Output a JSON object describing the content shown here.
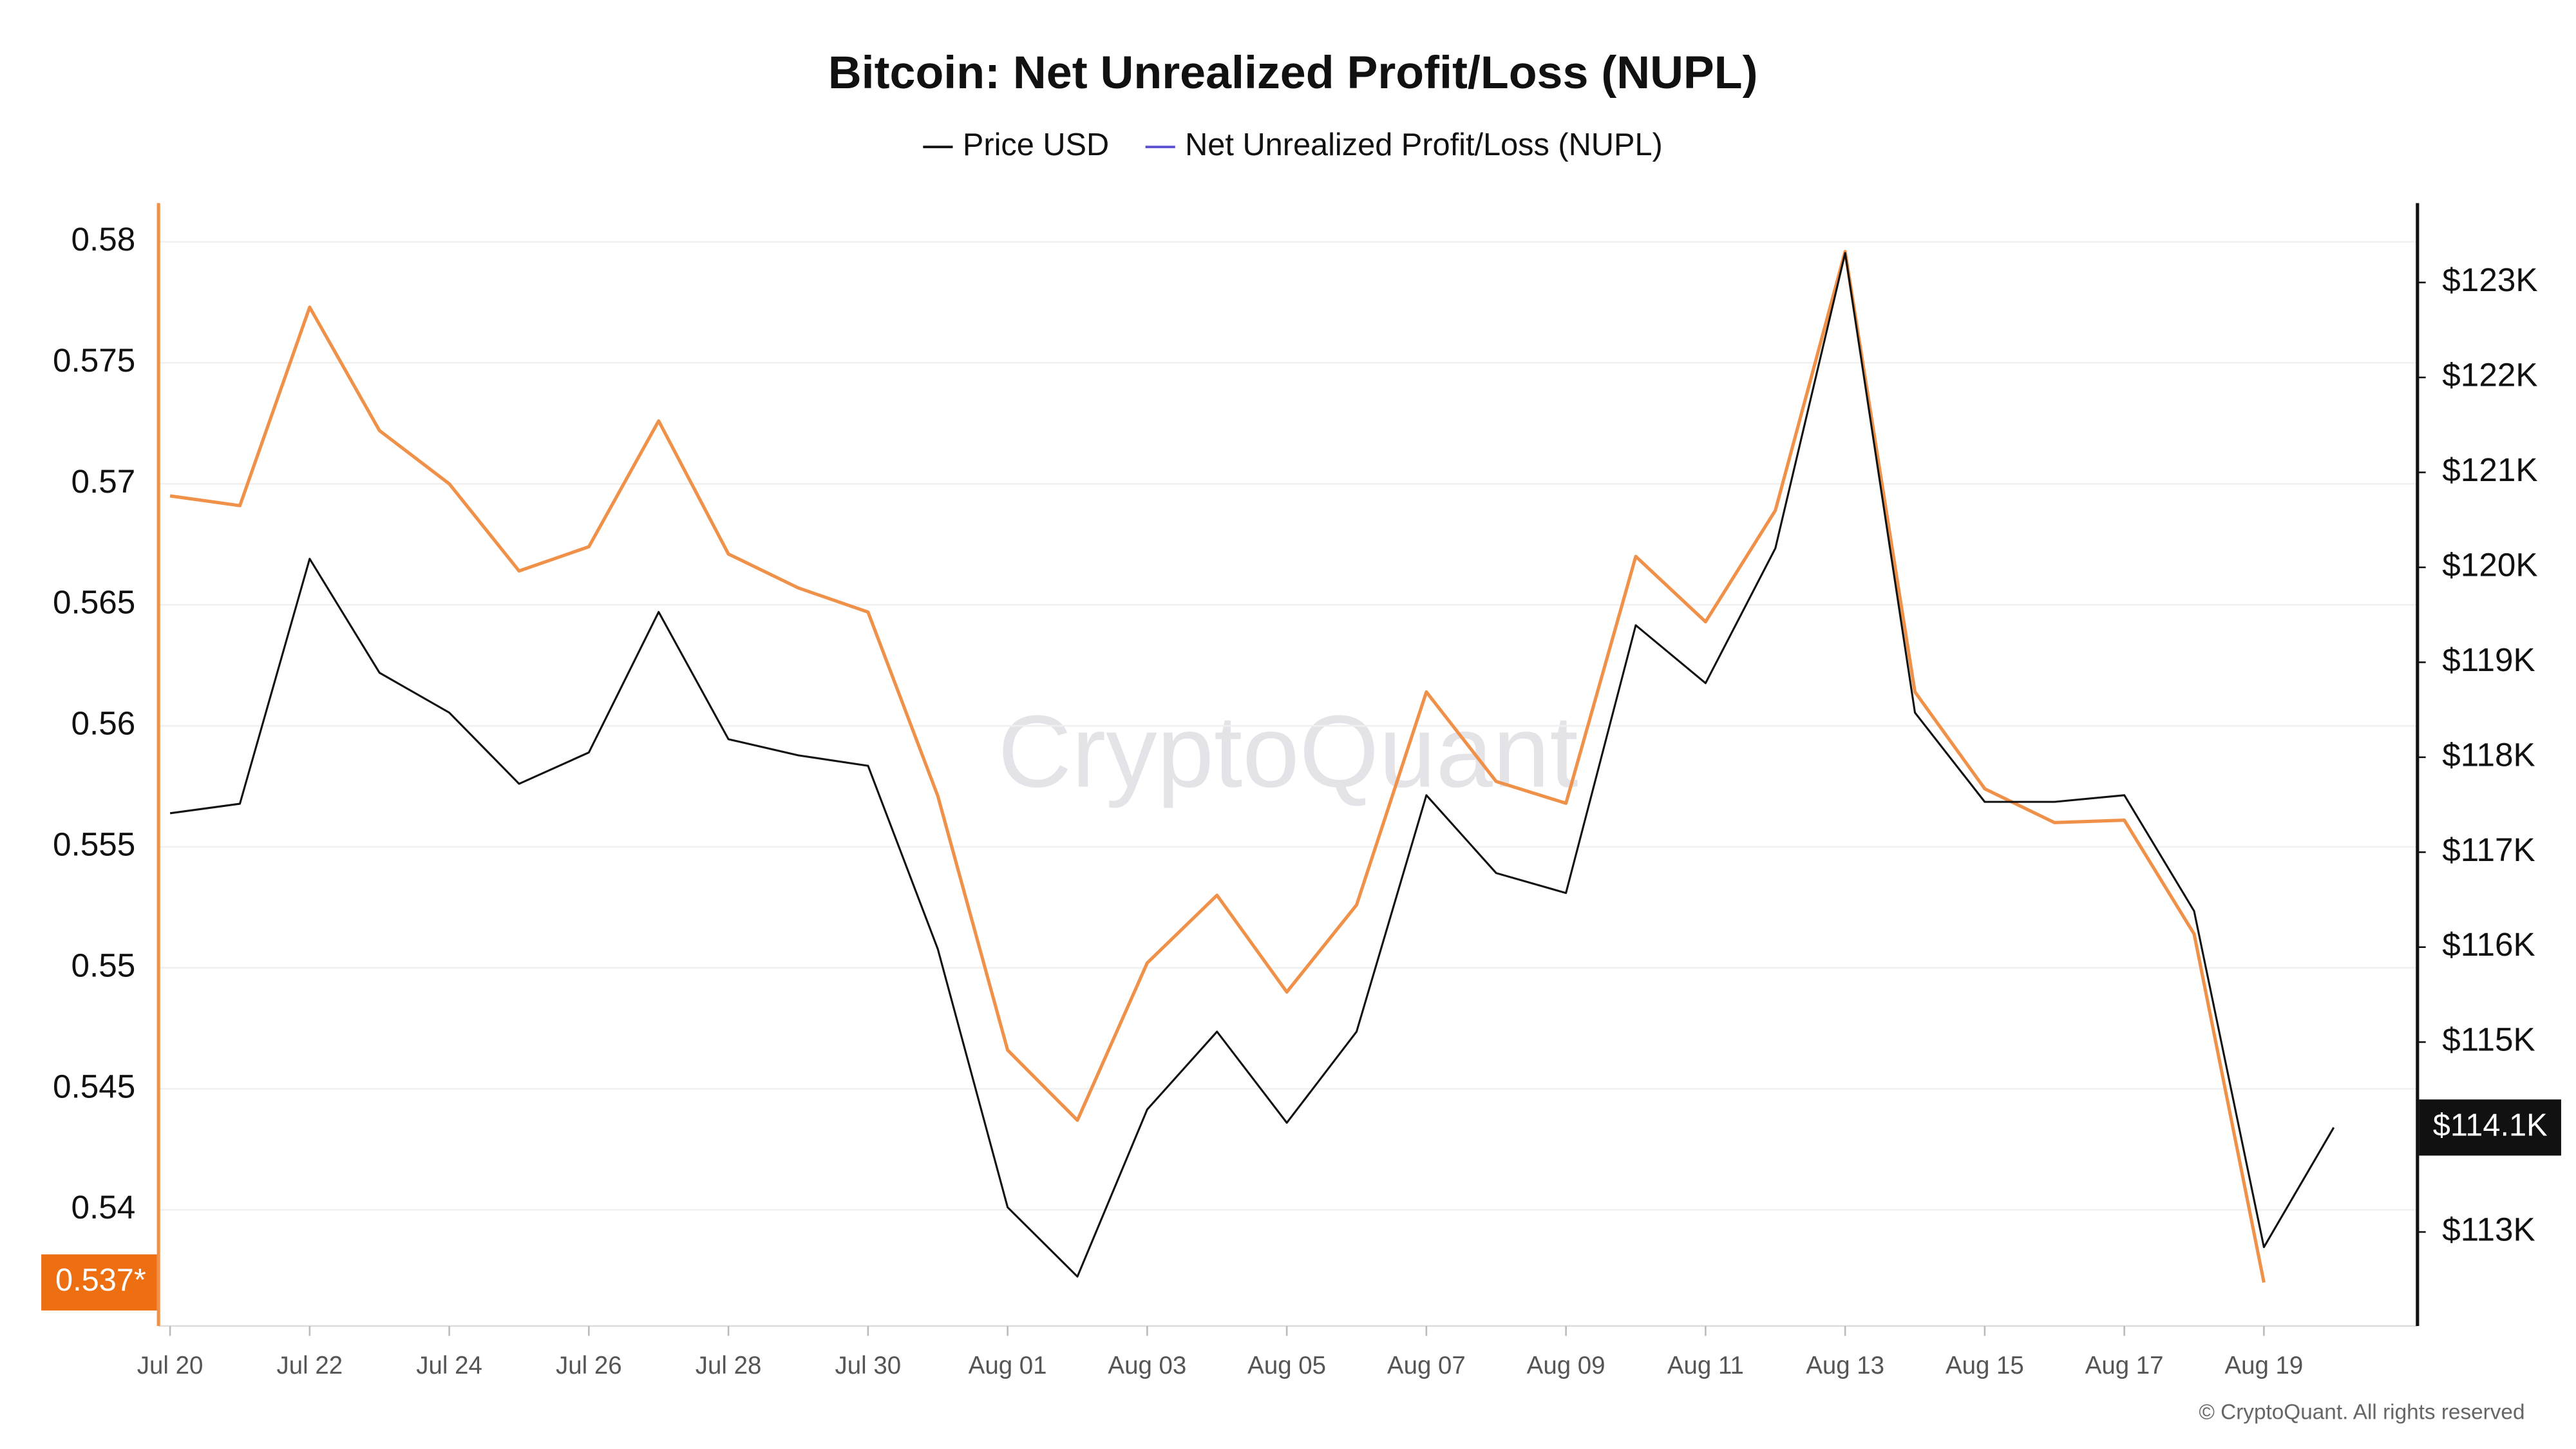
{
  "chart_data": {
    "type": "line",
    "title": "Bitcoin: Net Unrealized Profit/Loss (NUPL)",
    "watermark": "CryptoQuant",
    "credit": "© CryptoQuant. All rights reserved",
    "categories": [
      "Jul 20",
      null,
      "Jul 22",
      null,
      "Jul 24",
      null,
      "Jul 26",
      null,
      "Jul 28",
      null,
      "Jul 30",
      null,
      "Aug 01",
      null,
      "Aug 03",
      null,
      "Aug 05",
      null,
      "Aug 07",
      null,
      "Aug 09",
      null,
      "Aug 11",
      null,
      "Aug 13",
      null,
      "Aug 15",
      null,
      "Aug 17",
      null,
      "Aug 19",
      null
    ],
    "series": [
      {
        "name": "Price USD",
        "color": "#111111",
        "legend_color": "#111111",
        "axis": "y2",
        "values": [
          117410,
          117510,
          120090,
          118890,
          118470,
          117720,
          118050,
          119530,
          118190,
          118020,
          117910,
          115980,
          113260,
          112530,
          114290,
          115110,
          114150,
          115110,
          117600,
          116780,
          116570,
          119390,
          118780,
          120200,
          123310,
          118470,
          117530,
          117530,
          117600,
          116380,
          112840,
          114100
        ],
        "last_label": "$114.1K"
      },
      {
        "name": "Net Unrealized Profit/Loss (NUPL)",
        "color": "#f0914a",
        "legend_color": "#5a4fcf",
        "axis": "y",
        "values": [
          0.5695,
          0.5691,
          0.5773,
          0.5722,
          0.57,
          0.5664,
          0.5674,
          0.5726,
          0.5671,
          0.5657,
          0.5647,
          0.5571,
          0.5466,
          0.5437,
          0.5502,
          0.553,
          0.549,
          0.5526,
          0.5614,
          0.5577,
          0.5568,
          0.567,
          0.5643,
          0.5689,
          0.5796,
          0.5614,
          0.5574,
          0.556,
          0.5561,
          0.5514,
          0.537,
          null
        ],
        "last_label": "0.537*"
      }
    ],
    "ylim": [
      0.5352,
      0.5816
    ],
    "yticks": [
      0.54,
      0.545,
      0.55,
      0.555,
      0.56,
      0.565,
      0.57,
      0.575,
      0.58
    ],
    "y2lim": [
      112010,
      123836
    ],
    "y2ticks": [
      {
        "value": 113000,
        "label": "$113K"
      },
      {
        "value": 115000,
        "label": "$115K"
      },
      {
        "value": 116000,
        "label": "$116K"
      },
      {
        "value": 117000,
        "label": "$117K"
      },
      {
        "value": 118000,
        "label": "$118K"
      },
      {
        "value": 119000,
        "label": "$119K"
      },
      {
        "value": 120000,
        "label": "$120K"
      },
      {
        "value": 121000,
        "label": "$121K"
      },
      {
        "value": 122000,
        "label": "$122K"
      },
      {
        "value": 123000,
        "label": "$123K"
      }
    ],
    "grid": true
  }
}
